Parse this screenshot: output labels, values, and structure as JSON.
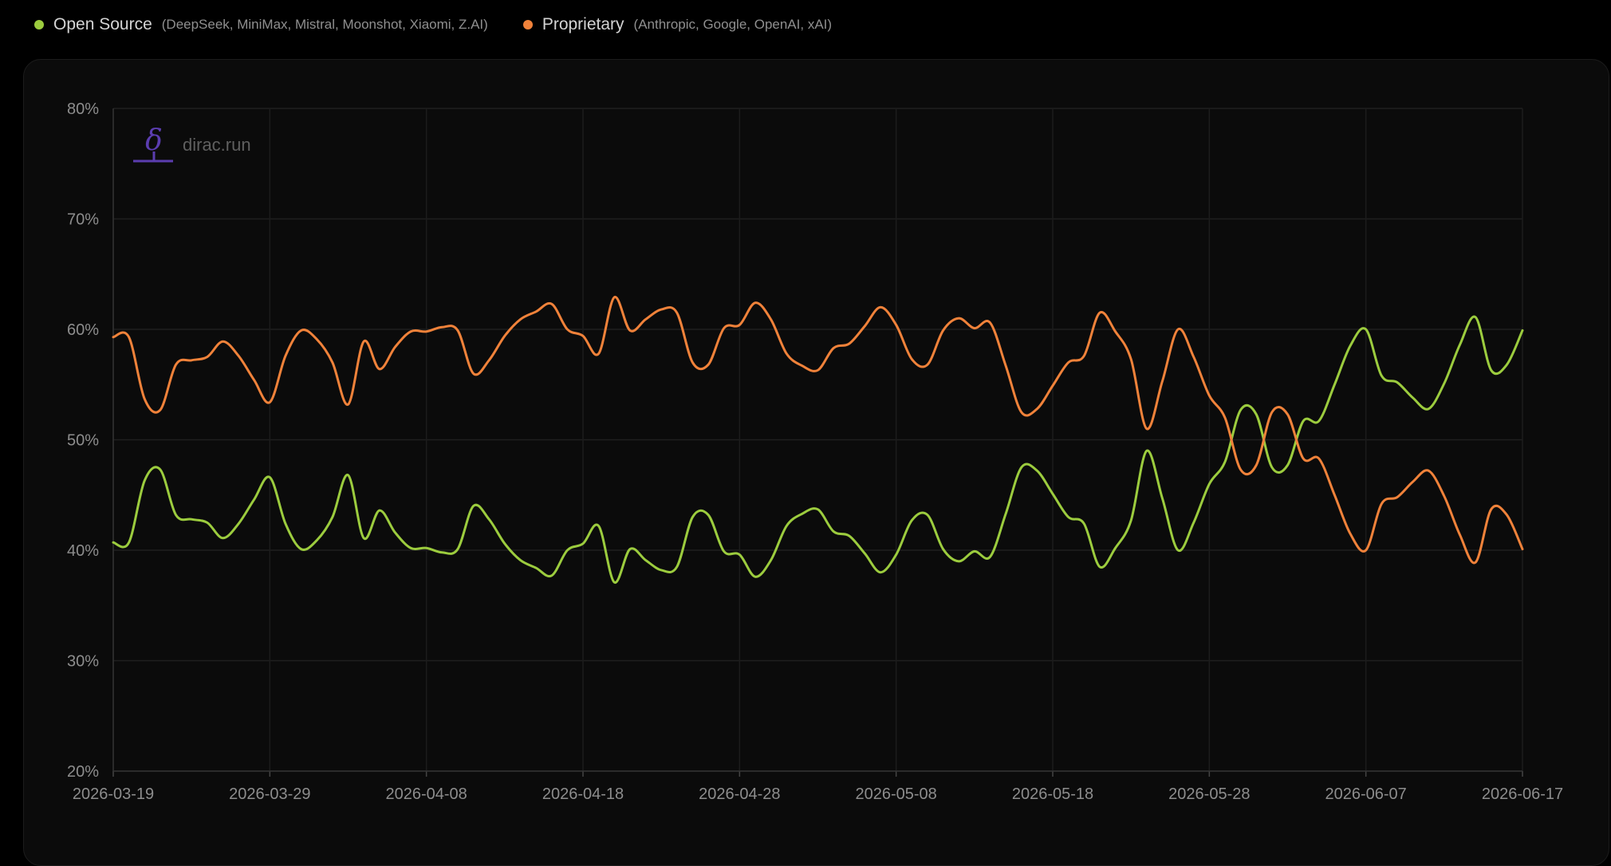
{
  "legend": {
    "open_source": {
      "label": "Open Source",
      "providers": "(DeepSeek, MiniMax, Mistral, Moonshot, Xiaomi, Z.AI)",
      "color": "#9ccc3e"
    },
    "proprietary": {
      "label": "Proprietary",
      "providers": "(Anthropic, Google, OpenAI, xAI)",
      "color": "#f0823a"
    }
  },
  "watermark": {
    "glyph": "δ",
    "text": "dirac.run"
  },
  "chart_data": {
    "type": "line",
    "ylim": [
      20,
      80
    ],
    "y_ticks": [
      "20%",
      "30%",
      "40%",
      "50%",
      "60%",
      "70%",
      "80%"
    ],
    "y_tick_values": [
      20,
      30,
      40,
      50,
      60,
      70,
      80
    ],
    "x_ticks": [
      "2026-03-19",
      "2026-03-29",
      "2026-04-08",
      "2026-04-18",
      "2026-04-28",
      "2026-05-08",
      "2026-05-18",
      "2026-05-28",
      "2026-06-07",
      "2026-06-17"
    ],
    "x_range": [
      "2026-03-19",
      "2026-06-17"
    ],
    "grid": true,
    "legend_position": "top-left",
    "x": [
      "2026-03-19",
      "2026-03-20",
      "2026-03-21",
      "2026-03-22",
      "2026-03-23",
      "2026-03-24",
      "2026-03-25",
      "2026-03-26",
      "2026-03-27",
      "2026-03-28",
      "2026-03-29",
      "2026-03-30",
      "2026-03-31",
      "2026-04-01",
      "2026-04-02",
      "2026-04-03",
      "2026-04-04",
      "2026-04-05",
      "2026-04-06",
      "2026-04-07",
      "2026-04-08",
      "2026-04-09",
      "2026-04-10",
      "2026-04-11",
      "2026-04-12",
      "2026-04-13",
      "2026-04-14",
      "2026-04-15",
      "2026-04-16",
      "2026-04-17",
      "2026-04-18",
      "2026-04-19",
      "2026-04-20",
      "2026-04-21",
      "2026-04-22",
      "2026-04-23",
      "2026-04-24",
      "2026-04-25",
      "2026-04-26",
      "2026-04-27",
      "2026-04-28",
      "2026-04-29",
      "2026-04-30",
      "2026-05-01",
      "2026-05-02",
      "2026-05-03",
      "2026-05-04",
      "2026-05-05",
      "2026-05-06",
      "2026-05-07",
      "2026-05-08",
      "2026-05-09",
      "2026-05-10",
      "2026-05-11",
      "2026-05-12",
      "2026-05-13",
      "2026-05-14",
      "2026-05-15",
      "2026-05-16",
      "2026-05-17",
      "2026-05-18",
      "2026-05-19",
      "2026-05-20",
      "2026-05-21",
      "2026-05-22",
      "2026-05-23",
      "2026-05-24",
      "2026-05-25",
      "2026-05-26",
      "2026-05-27",
      "2026-05-28",
      "2026-05-29",
      "2026-05-30",
      "2026-05-31",
      "2026-06-01",
      "2026-06-02",
      "2026-06-03",
      "2026-06-04",
      "2026-06-05",
      "2026-06-06",
      "2026-06-07",
      "2026-06-08",
      "2026-06-09",
      "2026-06-10",
      "2026-06-11",
      "2026-06-12",
      "2026-06-13",
      "2026-06-14",
      "2026-06-15",
      "2026-06-16",
      "2026-06-17"
    ],
    "series": [
      {
        "name": "Open Source",
        "color": "#9ccc3e",
        "values": [
          40.7,
          40.7,
          46.3,
          47.3,
          43.2,
          42.8,
          42.5,
          41.1,
          42.4,
          44.6,
          46.6,
          42.4,
          40.1,
          40.9,
          43.0,
          46.8,
          41.1,
          43.6,
          41.6,
          40.2,
          40.2,
          39.8,
          40.1,
          44.0,
          42.8,
          40.6,
          39.1,
          38.4,
          37.7,
          40.0,
          40.6,
          42.2,
          37.1,
          40.1,
          39.1,
          38.2,
          38.5,
          43.0,
          43.2,
          39.9,
          39.6,
          37.6,
          39.1,
          42.2,
          43.3,
          43.7,
          41.7,
          41.3,
          39.7,
          38.0,
          39.6,
          42.7,
          43.2,
          40.1,
          39.0,
          39.9,
          39.4,
          43.3,
          47.5,
          47.2,
          45.1,
          43.0,
          42.4,
          38.5,
          40.2,
          42.7,
          49.0,
          44.7,
          40.0,
          42.5,
          46.0,
          48.0,
          52.7,
          52.3,
          47.5,
          47.7,
          51.7,
          51.7,
          55.0,
          58.5,
          60.0,
          55.8,
          55.2,
          53.8,
          52.8,
          55.1,
          58.6,
          61.1,
          56.3,
          56.8,
          59.9
        ]
      },
      {
        "name": "Proprietary",
        "color": "#f0823a",
        "values": [
          59.3,
          59.3,
          53.7,
          52.7,
          56.8,
          57.2,
          57.5,
          58.9,
          57.6,
          55.4,
          53.4,
          57.6,
          59.9,
          59.1,
          57.0,
          53.2,
          58.9,
          56.4,
          58.4,
          59.8,
          59.8,
          60.2,
          59.9,
          56.0,
          57.2,
          59.4,
          60.9,
          61.6,
          62.3,
          60.0,
          59.4,
          57.8,
          62.9,
          59.9,
          60.9,
          61.8,
          61.5,
          57.0,
          56.8,
          60.1,
          60.4,
          62.4,
          60.9,
          57.8,
          56.7,
          56.3,
          58.3,
          58.7,
          60.3,
          62.0,
          60.4,
          57.3,
          56.8,
          59.9,
          61.0,
          60.1,
          60.6,
          56.7,
          52.5,
          52.8,
          54.9,
          57.0,
          57.6,
          61.5,
          59.8,
          57.3,
          51.0,
          55.3,
          60.0,
          57.5,
          54.0,
          52.0,
          47.3,
          47.7,
          52.5,
          52.3,
          48.3,
          48.3,
          45.0,
          41.5,
          40.0,
          44.2,
          44.8,
          46.2,
          47.2,
          44.9,
          41.4,
          38.9,
          43.7,
          43.2,
          40.1
        ]
      }
    ]
  }
}
